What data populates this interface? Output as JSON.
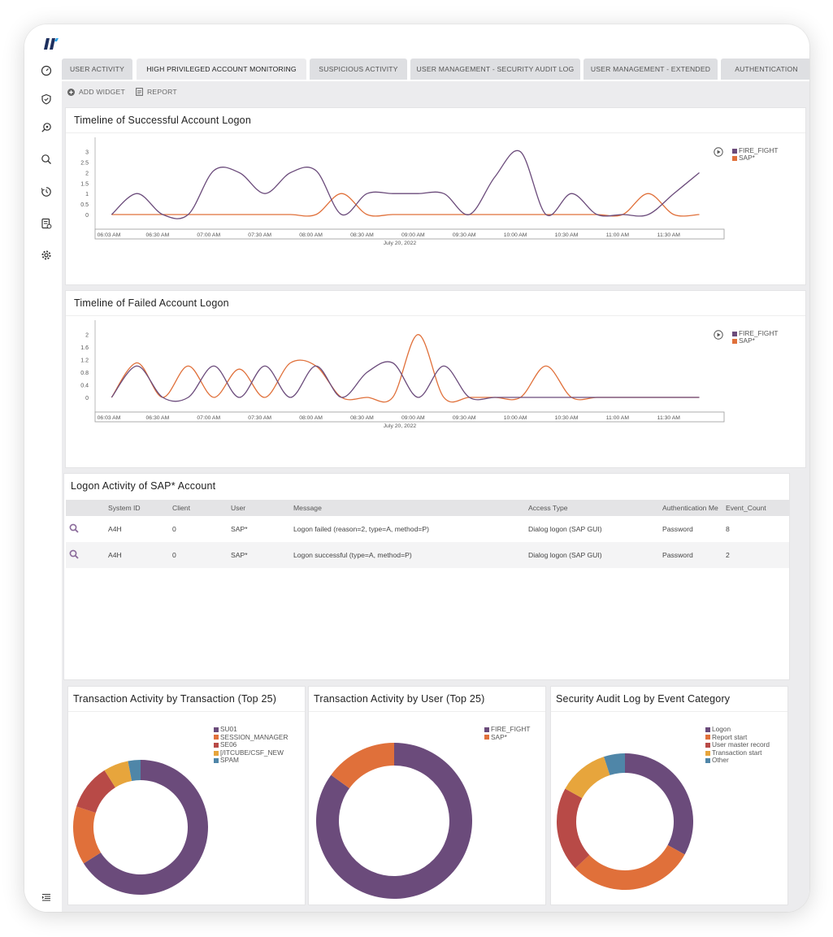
{
  "colors": {
    "purple": "#6b4b7b",
    "orange": "#e0703a",
    "red": "#b84a47",
    "yellow": "#e7a53c",
    "blue": "#4f86a8",
    "axis": "#999999"
  },
  "sidebar": {
    "logo": "brand-logo",
    "items": [
      {
        "icon": "dashboard-icon"
      },
      {
        "icon": "shield-icon"
      },
      {
        "icon": "investigate-icon"
      },
      {
        "icon": "search-icon"
      },
      {
        "icon": "history-icon"
      },
      {
        "icon": "report-icon"
      },
      {
        "icon": "gear-icon"
      }
    ],
    "bottom_icon": "menu-icon"
  },
  "tabs": [
    {
      "label": "USER ACTIVITY",
      "active": false
    },
    {
      "label": "HIGH PRIVILEGED ACCOUNT MONITORING",
      "active": true
    },
    {
      "label": "SUSPICIOUS ACTIVITY",
      "active": false
    },
    {
      "label": "USER MANAGEMENT - SECURITY AUDIT LOG",
      "active": false
    },
    {
      "label": "USER MANAGEMENT - EXTENDED",
      "active": false
    },
    {
      "label": "AUTHENTICATION",
      "active": false
    }
  ],
  "toolbar": {
    "add_widget": "ADD WIDGET",
    "report": "REPORT"
  },
  "success_panel": {
    "title": "Timeline of Successful Account Logon",
    "chart_data": {
      "type": "line",
      "x_ticks": [
        "06:03 AM",
        "06:30 AM",
        "07:00 AM",
        "07:30 AM",
        "08:00 AM",
        "08:30 AM",
        "09:00 AM",
        "09:30 AM",
        "10:00 AM",
        "10:30 AM",
        "11:00 AM",
        "11:30 AM"
      ],
      "xlabel": "July 20, 2022",
      "y_ticks": [
        3,
        2.5,
        2,
        1.5,
        1,
        0.5,
        0
      ],
      "ylim": [
        0,
        3.3
      ],
      "series": [
        {
          "name": "FIRE_FIGHT",
          "color": "#6b4b7b",
          "x": [
            "06:03 AM",
            "06:18 AM",
            "06:33 AM",
            "06:48 AM",
            "07:03 AM",
            "07:18 AM",
            "07:33 AM",
            "07:48 AM",
            "08:03 AM",
            "08:18 AM",
            "08:33 AM",
            "08:48 AM",
            "09:03 AM",
            "09:18 AM",
            "09:33 AM",
            "09:48 AM",
            "10:03 AM",
            "10:18 AM",
            "10:33 AM",
            "10:48 AM",
            "11:03 AM",
            "11:18 AM",
            "11:33 AM",
            "11:48 AM"
          ],
          "y": [
            0,
            1,
            0,
            0,
            2.1,
            2,
            1,
            2,
            2.1,
            0,
            1,
            1,
            1,
            1,
            0,
            1.8,
            3,
            0,
            1,
            0,
            0,
            0,
            1,
            2
          ]
        },
        {
          "name": "SAP*",
          "color": "#e0703a",
          "x": [
            "06:03 AM",
            "06:18 AM",
            "06:33 AM",
            "06:48 AM",
            "07:03 AM",
            "07:18 AM",
            "07:33 AM",
            "07:48 AM",
            "08:03 AM",
            "08:18 AM",
            "08:33 AM",
            "08:48 AM",
            "09:03 AM",
            "09:18 AM",
            "09:33 AM",
            "09:48 AM",
            "10:03 AM",
            "10:18 AM",
            "10:33 AM",
            "10:48 AM",
            "11:03 AM",
            "11:18 AM",
            "11:33 AM",
            "11:48 AM"
          ],
          "y": [
            0,
            0,
            0,
            0,
            0,
            0,
            0,
            0,
            0,
            1,
            0,
            0,
            0,
            0,
            0,
            0,
            0,
            0,
            0,
            0,
            0,
            1,
            0,
            0
          ]
        }
      ]
    }
  },
  "failed_panel": {
    "title": "Timeline of Failed Account Logon",
    "chart_data": {
      "type": "line",
      "x_ticks": [
        "06:03 AM",
        "06:30 AM",
        "07:00 AM",
        "07:30 AM",
        "08:00 AM",
        "08:30 AM",
        "09:00 AM",
        "09:30 AM",
        "10:00 AM",
        "10:30 AM",
        "11:00 AM",
        "11:30 AM"
      ],
      "xlabel": "July 20, 2022",
      "y_ticks": [
        2,
        1.6,
        1.2,
        0.8,
        0.4,
        0
      ],
      "ylim": [
        0,
        2.2
      ],
      "series": [
        {
          "name": "FIRE_FIGHT",
          "color": "#6b4b7b",
          "x": [
            "06:03 AM",
            "06:18 AM",
            "06:33 AM",
            "06:48 AM",
            "07:03 AM",
            "07:18 AM",
            "07:33 AM",
            "07:48 AM",
            "08:03 AM",
            "08:18 AM",
            "08:33 AM",
            "08:48 AM",
            "09:03 AM",
            "09:18 AM",
            "09:33 AM",
            "09:48 AM",
            "10:03 AM",
            "10:18 AM",
            "10:33 AM",
            "10:48 AM",
            "11:03 AM",
            "11:18 AM",
            "11:33 AM",
            "11:48 AM"
          ],
          "y": [
            0,
            1,
            0,
            0,
            1,
            0,
            1,
            0,
            1,
            0,
            0.8,
            1.1,
            0,
            1,
            0,
            0,
            0,
            0,
            0,
            0,
            0,
            0,
            0,
            0
          ]
        },
        {
          "name": "SAP*",
          "color": "#e0703a",
          "x": [
            "06:03 AM",
            "06:18 AM",
            "06:33 AM",
            "06:48 AM",
            "07:03 AM",
            "07:18 AM",
            "07:33 AM",
            "07:48 AM",
            "08:03 AM",
            "08:18 AM",
            "08:33 AM",
            "08:48 AM",
            "09:03 AM",
            "09:18 AM",
            "09:33 AM",
            "09:48 AM",
            "10:03 AM",
            "10:18 AM",
            "10:33 AM",
            "10:48 AM",
            "11:03 AM",
            "11:18 AM",
            "11:33 AM",
            "11:48 AM"
          ],
          "y": [
            0,
            1.1,
            0,
            1,
            0,
            0.9,
            0,
            1.1,
            1,
            0,
            0,
            0,
            2,
            0,
            0,
            0,
            0,
            1,
            0,
            0,
            0,
            0,
            0,
            0
          ]
        }
      ]
    }
  },
  "logon_panel": {
    "title": "Logon Activity of SAP* Account",
    "columns": [
      "",
      "System ID",
      "Client",
      "User",
      "Message",
      "Access Type",
      "Authentication Me",
      "Event_Count"
    ],
    "rows": [
      {
        "system_id": "A4H",
        "client": "0",
        "user": "SAP*",
        "message": "Logon failed (reason=2, type=A, method=P)",
        "access_type": "Dialog logon (SAP GUI)",
        "auth": "Password",
        "count": "8"
      },
      {
        "system_id": "A4H",
        "client": "0",
        "user": "SAP*",
        "message": "Logon successful (type=A, method=P)",
        "access_type": "Dialog logon (SAP GUI)",
        "auth": "Password",
        "count": "2"
      }
    ]
  },
  "donut_panels": [
    {
      "title": "Transaction Activity by Transaction (Top 25)",
      "chart_data": {
        "type": "pie",
        "labels": [
          "SU01",
          "SESSION_MANAGER",
          "SE06",
          "/ITCUBE/CSF_NEW",
          "SPAM"
        ],
        "values": [
          66,
          14,
          11,
          6,
          3
        ],
        "colors": [
          "#6b4b7b",
          "#e0703a",
          "#b84a47",
          "#e7a53c",
          "#4f86a8"
        ]
      },
      "legend_labels": [
        "SU01",
        "SESSION_MANAGER",
        "SE06",
        "[/ITCUBE/CSF_NEW",
        "SPAM"
      ]
    },
    {
      "title": "Transaction Activity by User (Top 25)",
      "chart_data": {
        "type": "pie",
        "labels": [
          "FIRE_FIGHT",
          "SAP*"
        ],
        "values": [
          85,
          15
        ],
        "colors": [
          "#6b4b7b",
          "#e0703a"
        ]
      },
      "legend_labels": [
        "FIRE_FIGHT",
        "SAP*"
      ]
    },
    {
      "title": "Security Audit Log by Event Category",
      "chart_data": {
        "type": "pie",
        "labels": [
          "Logon",
          "Report start",
          "User master record",
          "Transaction start",
          "Other"
        ],
        "values": [
          33,
          30,
          20,
          12,
          5
        ],
        "colors": [
          "#6b4b7b",
          "#e0703a",
          "#b84a47",
          "#e7a53c",
          "#4f86a8"
        ]
      },
      "legend_labels": [
        "Logon",
        "Report start",
        "User master record",
        "Transaction start",
        "Other"
      ]
    }
  ]
}
